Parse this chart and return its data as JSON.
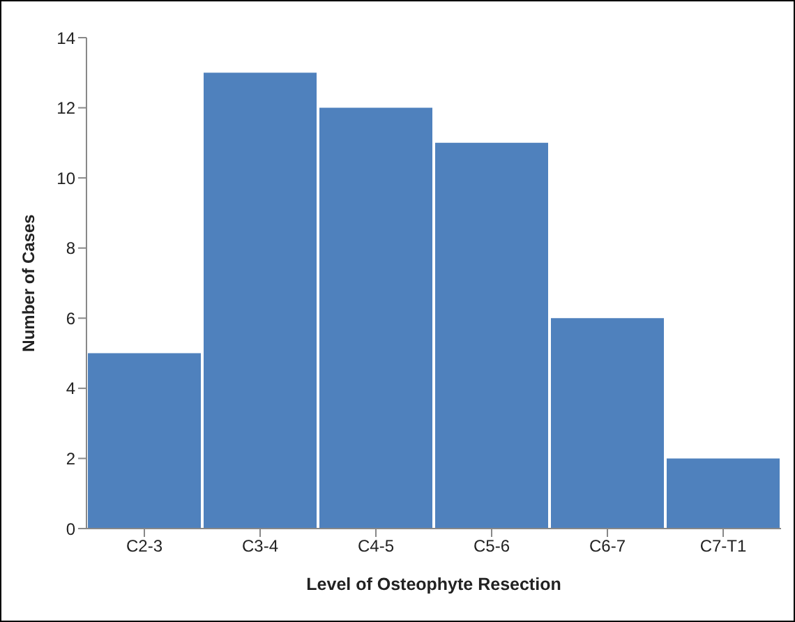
{
  "chart_data": {
    "type": "bar",
    "xlabel": "Level of Osteophyte Resection",
    "ylabel": "Number of Cases",
    "categories": [
      "C2-3",
      "C3-4",
      "C4-5",
      "C5-6",
      "C6-7",
      "C7-T1"
    ],
    "values": [
      5,
      13,
      12,
      11,
      6,
      2
    ],
    "color": "#4f81bd",
    "ylim": [
      0,
      14
    ],
    "yticks": [
      0,
      2,
      4,
      6,
      8,
      10,
      12,
      14
    ],
    "grid": false,
    "legend": false
  }
}
